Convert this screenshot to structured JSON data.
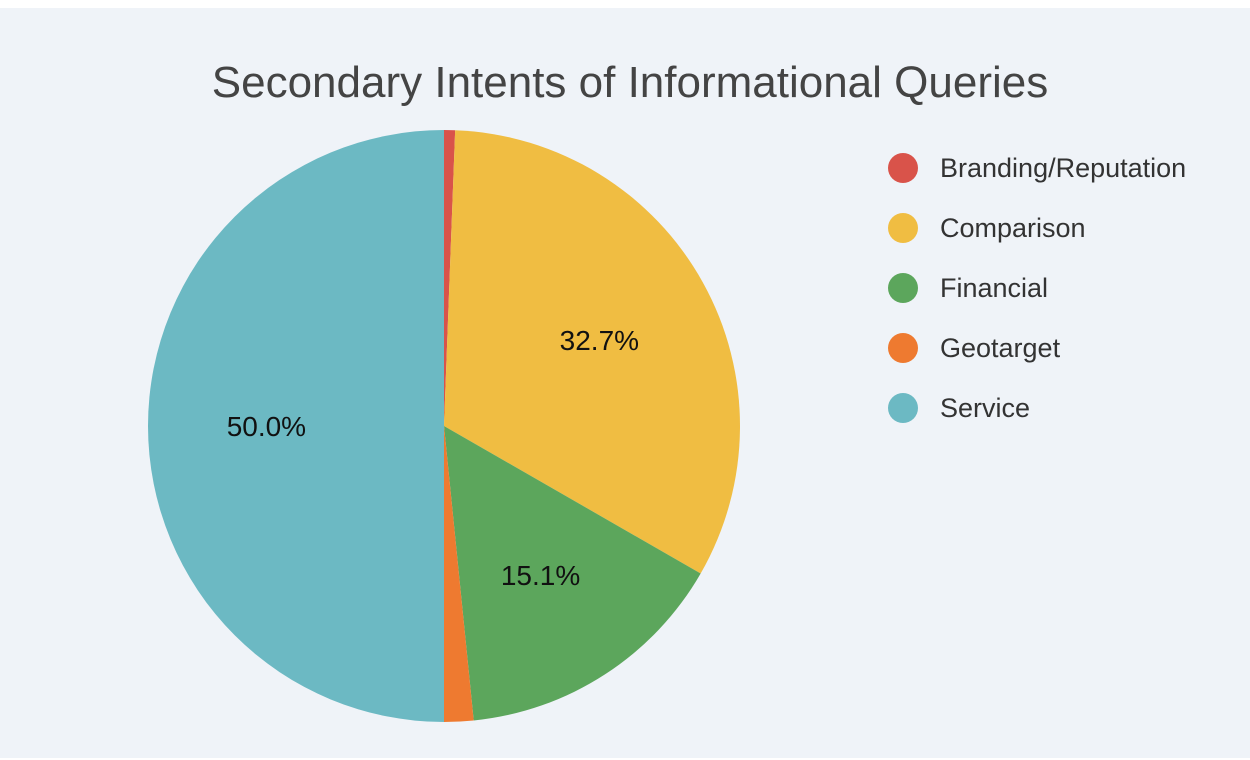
{
  "chart_data": {
    "type": "pie",
    "title": "Secondary Intents of Informational Queries",
    "categories": [
      "Branding/Reputation",
      "Comparison",
      "Financial",
      "Geotarget",
      "Service"
    ],
    "values": [
      0.6,
      32.7,
      15.1,
      1.6,
      50.0
    ],
    "colors": [
      "#d9534a",
      "#f0bd42",
      "#5ca65c",
      "#ee7a30",
      "#6cb9c3"
    ],
    "data_labels": [
      "",
      "32.7%",
      "15.1%",
      "",
      "50.0%"
    ],
    "legend_position": "right"
  }
}
